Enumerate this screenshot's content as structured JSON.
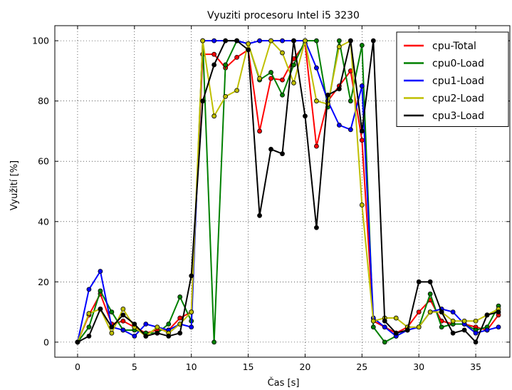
{
  "chart_data": {
    "type": "line",
    "title": "Vyuziti procesoru Intel i5 3230",
    "xlabel": "Čas [s]",
    "ylabel": "Využití [%]",
    "xlim": [
      -2,
      38
    ],
    "ylim": [
      -5,
      105
    ],
    "xticks": [
      0,
      5,
      10,
      15,
      20,
      25,
      30,
      35
    ],
    "yticks": [
      0,
      20,
      40,
      60,
      80,
      100
    ],
    "grid": true,
    "legend_position": "top-right",
    "x": [
      0,
      1,
      2,
      3,
      4,
      5,
      6,
      7,
      8,
      9,
      10,
      11,
      12,
      13,
      14,
      15,
      16,
      17,
      18,
      19,
      20,
      21,
      22,
      23,
      24,
      25,
      26,
      27,
      28,
      29,
      30,
      31,
      32,
      33,
      34,
      35,
      36,
      37
    ],
    "series": [
      {
        "name": "cpu-Total",
        "color": "#ff0000",
        "values": [
          0,
          9,
          16,
          6,
          7,
          5,
          3,
          4,
          4,
          8,
          10,
          95.5,
          95.5,
          91,
          94.5,
          97,
          70,
          87.5,
          87,
          94,
          99,
          65,
          80,
          85,
          90,
          67,
          7,
          5,
          3,
          5,
          10,
          14,
          7,
          6,
          6,
          5,
          4,
          9
        ]
      },
      {
        "name": "cpu0-Load",
        "color": "#008000",
        "values": [
          0,
          5,
          17,
          10,
          4,
          4,
          3,
          3,
          6,
          15,
          7,
          100,
          0,
          92,
          100,
          99,
          87,
          89.5,
          82,
          92,
          100,
          100,
          78,
          100,
          80,
          98.5,
          5,
          0,
          2,
          4,
          5,
          16,
          5,
          6,
          6,
          4,
          5,
          12
        ]
      },
      {
        "name": "cpu1-Load",
        "color": "#0000ff",
        "values": [
          0,
          17.5,
          23.5,
          5,
          4,
          2,
          6,
          5,
          4,
          6,
          5,
          100,
          100,
          100,
          100,
          99,
          100,
          100,
          100,
          100,
          100,
          91,
          80,
          72,
          70.5,
          85,
          8,
          5,
          2,
          4,
          5,
          10,
          11,
          10,
          6,
          3,
          4,
          5
        ]
      },
      {
        "name": "cpu2-Load",
        "color": "#bfbf00",
        "values": [
          0,
          9.5,
          11,
          3,
          11,
          5,
          2,
          5,
          3,
          6,
          10,
          100,
          75,
          81.5,
          83.5,
          99,
          87.5,
          100,
          96,
          86,
          100,
          80,
          79,
          98,
          100,
          45.5,
          7,
          8,
          8,
          5,
          5,
          10,
          10,
          7,
          7,
          7,
          9,
          11
        ]
      },
      {
        "name": "cpu3-Load",
        "color": "#000000",
        "values": [
          0,
          2,
          11,
          5,
          9,
          6,
          2,
          3,
          2,
          3,
          22,
          80,
          92,
          100,
          100,
          97,
          42,
          64,
          62.5,
          100,
          75,
          38,
          82,
          84,
          100,
          70,
          100,
          7,
          3,
          4,
          20,
          20,
          10,
          3,
          4,
          0,
          9,
          10
        ]
      }
    ]
  }
}
